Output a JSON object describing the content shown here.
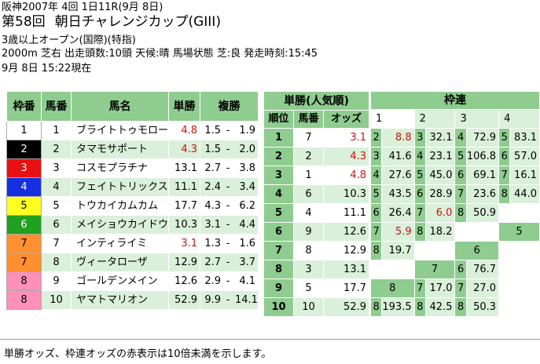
{
  "header": {
    "line1": "阪神2007年 4回 1日11R(9月 8日)",
    "race_number": "第58回",
    "race_name": "朝日チャレンジカップ(GIII)",
    "condition": "3歳以上オープン(国際)(特指)",
    "info": "2000m 芝右 出走頭数:10頭 天候:晴 馬場状態 芝:良 発走時刻:15:45",
    "updated": "9月 8日 15:22現在"
  },
  "left_table": {
    "headers": [
      "枠番",
      "馬番",
      "馬名",
      "単勝",
      "複勝"
    ],
    "rows": [
      {
        "waku": "1",
        "umaban": "1",
        "name": "ブライトトゥモロー",
        "win": "4.8",
        "win_red": true,
        "place_lo": "1.5",
        "place_hi": "1.9",
        "waku_color": "#ffffff"
      },
      {
        "waku": "2",
        "umaban": "2",
        "name": "タマモサポート",
        "win": "4.3",
        "win_red": true,
        "place_lo": "1.5",
        "place_hi": "2.0",
        "waku_color": "#000000"
      },
      {
        "waku": "3",
        "umaban": "3",
        "name": "コスモプラチナ",
        "win": "13.1",
        "win_red": false,
        "place_lo": "2.7",
        "place_hi": "3.8",
        "waku_color": "#e81010"
      },
      {
        "waku": "4",
        "umaban": "4",
        "name": "フェイトトリックス",
        "win": "11.1",
        "win_red": false,
        "place_lo": "2.4",
        "place_hi": "3.4",
        "waku_color": "#1530e0"
      },
      {
        "waku": "5",
        "umaban": "5",
        "name": "トウカイカムカム",
        "win": "17.7",
        "win_red": false,
        "place_lo": "4.3",
        "place_hi": "6.2",
        "waku_color": "#ffff20"
      },
      {
        "waku": "6",
        "umaban": "6",
        "name": "メイショウカイドウ",
        "win": "10.3",
        "win_red": false,
        "place_lo": "3.1",
        "place_hi": "4.4",
        "waku_color": "#20a020"
      },
      {
        "waku": "7",
        "umaban": "7",
        "name": "インティライミ",
        "win": "3.1",
        "win_red": true,
        "place_lo": "1.3",
        "place_hi": "1.6",
        "waku_color": "#ff9030"
      },
      {
        "waku": "7",
        "umaban": "8",
        "name": "ヴィータローザ",
        "win": "12.9",
        "win_red": false,
        "place_lo": "2.7",
        "place_hi": "3.7",
        "waku_color": "#ff9030"
      },
      {
        "waku": "8",
        "umaban": "9",
        "name": "ゴールデンメイン",
        "win": "12.6",
        "win_red": false,
        "place_lo": "2.9",
        "place_hi": "4.1",
        "waku_color": "#ff90b8"
      },
      {
        "waku": "8",
        "umaban": "10",
        "name": "ヤマトマリオン",
        "win": "52.9",
        "win_red": false,
        "place_lo": "9.9",
        "place_hi": "14.1",
        "waku_color": "#ff90b8"
      }
    ],
    "dash": "-"
  },
  "pop_table": {
    "title": "単勝(人気順)",
    "headers": [
      "順位",
      "馬番",
      "オッズ"
    ],
    "rows": [
      {
        "rank": "1",
        "umaban": "7",
        "odds": "3.1",
        "red": true
      },
      {
        "rank": "2",
        "umaban": "2",
        "odds": "4.3",
        "red": true
      },
      {
        "rank": "3",
        "umaban": "1",
        "odds": "4.8",
        "red": true
      },
      {
        "rank": "4",
        "umaban": "6",
        "odds": "10.3",
        "red": false
      },
      {
        "rank": "5",
        "umaban": "4",
        "odds": "11.1",
        "red": false
      },
      {
        "rank": "6",
        "umaban": "9",
        "odds": "12.6",
        "red": false
      },
      {
        "rank": "7",
        "umaban": "8",
        "odds": "12.9",
        "red": false
      },
      {
        "rank": "8",
        "umaban": "3",
        "odds": "13.1",
        "red": false
      },
      {
        "rank": "9",
        "umaban": "5",
        "odds": "17.7",
        "red": false
      },
      {
        "rank": "10",
        "umaban": "10",
        "odds": "52.9",
        "red": false
      }
    ]
  },
  "waku_table": {
    "title": "枠連",
    "cols": [
      "1",
      "2",
      "3",
      "4"
    ],
    "rows": [
      [
        [
          "1",
          "",
          "white"
        ],
        [
          "2",
          "",
          "dark"
        ],
        [
          "3",
          "",
          "light"
        ],
        [
          "4",
          "",
          "light"
        ]
      ],
      [
        [
          "2",
          "8.8",
          "red"
        ],
        [
          "3",
          "32.1",
          ""
        ],
        [
          "4",
          "72.9",
          ""
        ],
        [
          "5",
          "83.1",
          ""
        ]
      ],
      [
        [
          "3",
          "41.6",
          ""
        ],
        [
          "4",
          "23.1",
          ""
        ],
        [
          "5",
          "106.8",
          ""
        ],
        [
          "6",
          "57.0",
          ""
        ]
      ],
      [
        [
          "4",
          "27.6",
          ""
        ],
        [
          "5",
          "45.0",
          ""
        ],
        [
          "6",
          "69.1",
          ""
        ],
        [
          "7",
          "16.1",
          ""
        ]
      ],
      [
        [
          "5",
          "43.5",
          ""
        ],
        [
          "6",
          "28.9",
          ""
        ],
        [
          "7",
          "23.6",
          ""
        ],
        [
          "8",
          "44.0",
          ""
        ]
      ],
      [
        [
          "6",
          "26.4",
          ""
        ],
        [
          "7",
          "6.0",
          "red"
        ],
        [
          "8",
          "50.9",
          ""
        ],
        [
          "",
          "",
          "blank"
        ]
      ],
      [
        [
          "7",
          "5.9",
          "red"
        ],
        [
          "8",
          "18.2",
          ""
        ],
        [
          "",
          "",
          "blank"
        ],
        [
          "5",
          "",
          "head"
        ]
      ],
      [
        [
          "8",
          "19.7",
          ""
        ],
        [
          "",
          "",
          "blank"
        ],
        [
          "6",
          "",
          "head"
        ],
        [
          "",
          "",
          "blank"
        ]
      ],
      [
        [
          "",
          "",
          "blank"
        ],
        [
          "7",
          "",
          "head"
        ],
        [
          "6",
          "76.7",
          ""
        ],
        [
          "",
          "",
          "blank"
        ]
      ],
      [
        [
          "8",
          "",
          "headw"
        ],
        [
          "7",
          "17.0",
          ""
        ],
        [
          "7",
          "27.0",
          ""
        ],
        [
          "",
          "",
          "blank"
        ]
      ],
      [
        [
          "8",
          "193.5",
          ""
        ],
        [
          "8",
          "42.5",
          ""
        ],
        [
          "8",
          "50.3",
          ""
        ],
        [
          "",
          "",
          "blank"
        ]
      ]
    ]
  },
  "footer": "単勝オッズ、枠連オッズの赤表示は10倍未満を示します。"
}
